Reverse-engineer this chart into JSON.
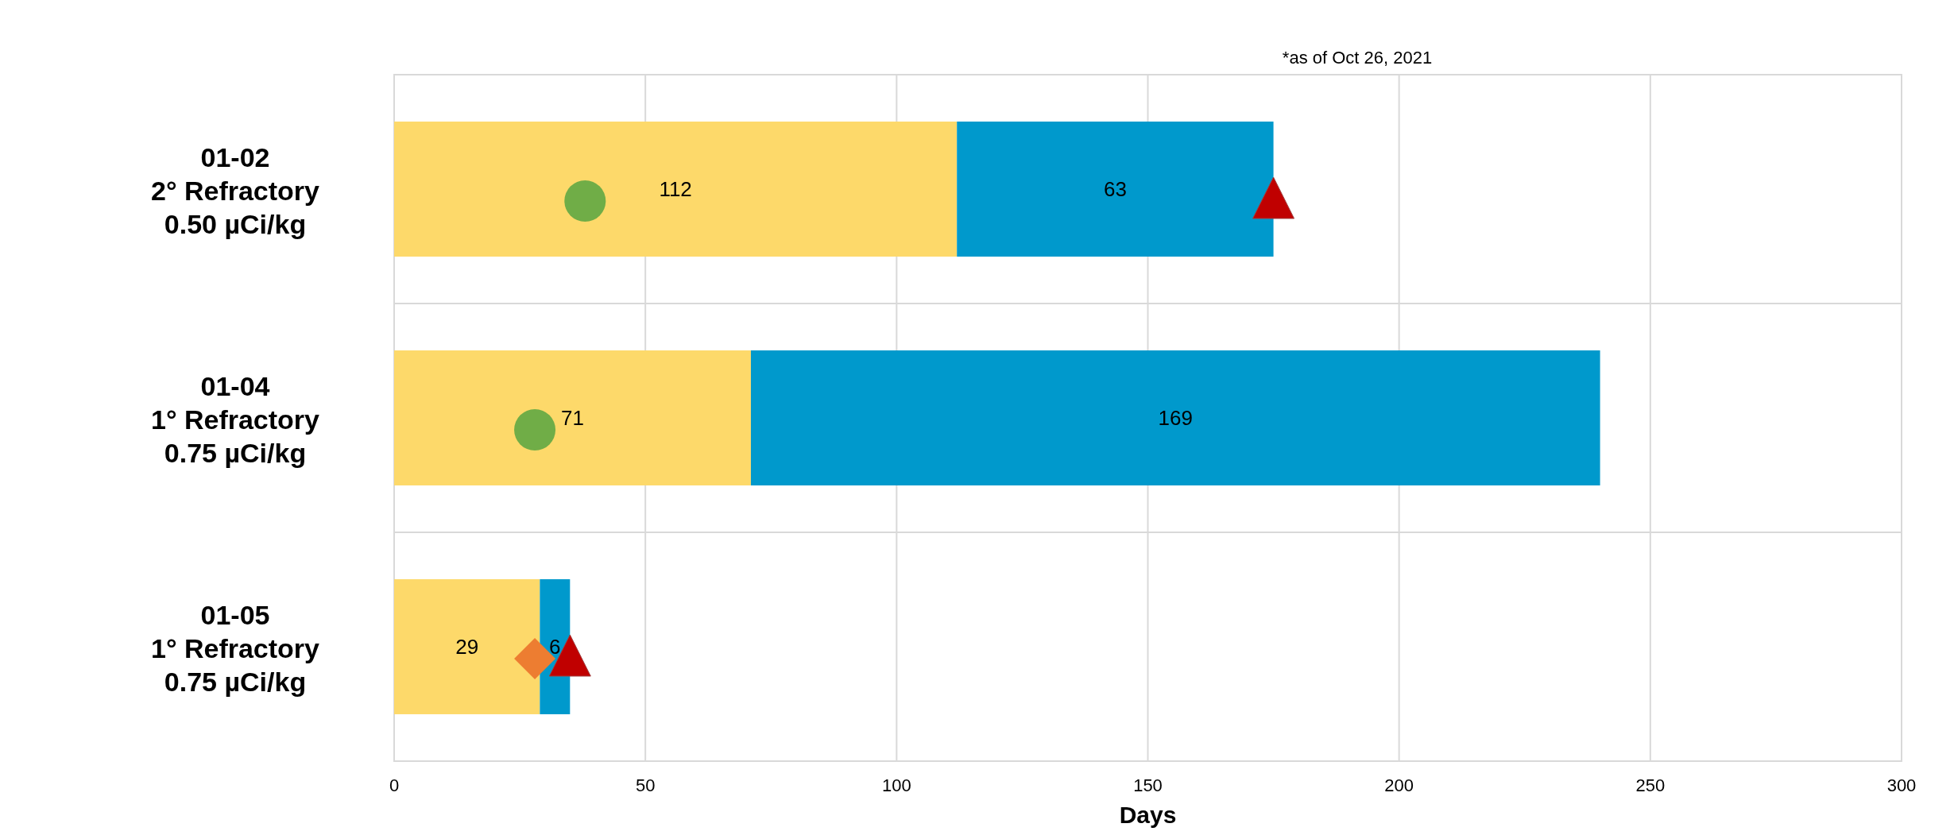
{
  "chart_data": {
    "type": "bar",
    "orientation": "horizontal",
    "stacked": true,
    "categories": [
      "01-02\n2° Refractory\n0.50 µCi/kg",
      "01-04\n1° Refractory\n0.75 µCi/kg",
      "01-05\n1° Refractory\n0.75 µCi/kg"
    ],
    "series": [
      {
        "color": "#fdd96a",
        "values": [
          112,
          71,
          29
        ],
        "value_labels": [
          "112",
          "71",
          "29"
        ]
      },
      {
        "color": "#0099cc",
        "values": [
          63,
          169,
          6
        ],
        "value_labels": [
          "63",
          "169",
          "6"
        ]
      },
      {
        "type": "scatter",
        "marker": "circle",
        "color": "#70ad47",
        "x": [
          "01-02\n2° Refractory\n0.50 µCi/kg",
          "01-04\n1° Refractory\n0.75 µCi/kg"
        ],
        "values": [
          38,
          28
        ]
      },
      {
        "type": "scatter",
        "marker": "diamond",
        "color": "#ed7d31",
        "x": [
          "01-05\n1° Refractory\n0.75 µCi/kg"
        ],
        "values": [
          28
        ]
      },
      {
        "type": "scatter",
        "marker": "triangle",
        "color": "#c00000",
        "x": [
          "01-02\n2° Refractory\n0.50 µCi/kg",
          "01-05\n1° Refractory\n0.75 µCi/kg"
        ],
        "values": [
          175,
          35
        ]
      }
    ],
    "xlim": [
      0,
      300
    ],
    "xticks": [
      0,
      50,
      100,
      150,
      200,
      250,
      300
    ],
    "xlabel": "Days",
    "grid": "x",
    "annotations": [
      "*as of Oct 26, 2021"
    ]
  }
}
